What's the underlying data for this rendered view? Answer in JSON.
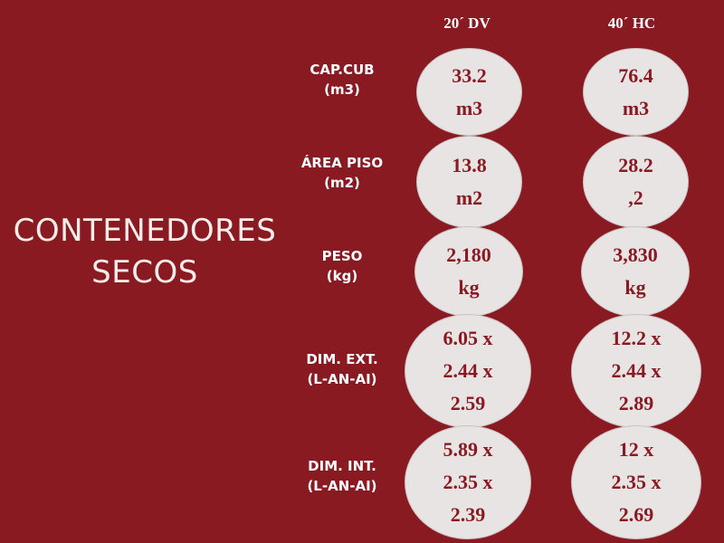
{
  "title": {
    "line1": "CONTENEDORES",
    "line2": "SECOS"
  },
  "columns": [
    "20´ DV",
    "40´ HC"
  ],
  "rows": [
    {
      "label": [
        "CAP.CUB",
        "(m3)"
      ],
      "cells": [
        [
          "33.2",
          "m3"
        ],
        [
          "76.4",
          "m3"
        ]
      ]
    },
    {
      "label": [
        "ÁREA PISO",
        "(m2)"
      ],
      "cells": [
        [
          "13.8",
          "m2"
        ],
        [
          "28.2",
          ",2"
        ]
      ]
    },
    {
      "label": [
        "PESO",
        "(kg)"
      ],
      "cells": [
        [
          "2,180",
          "kg"
        ],
        [
          "3,830",
          "kg"
        ]
      ]
    },
    {
      "label": [
        "DIM. EXT.",
        "(L-AN-AI)"
      ],
      "cells": [
        [
          "6.05 x",
          "2.44 x",
          "2.59"
        ],
        [
          "12.2 x",
          "2.44 x",
          "2.89"
        ]
      ]
    },
    {
      "label": [
        "DIM. INT.",
        "(L-AN-AI)"
      ],
      "cells": [
        [
          "5.89 x",
          "2.35 x",
          "2.39"
        ],
        [
          "12 x",
          "2.35 x",
          "2.69"
        ]
      ]
    }
  ],
  "colors": {
    "background": "#8a1a22",
    "bubble": "#e8e4e4",
    "bubble_text": "#8a1a22",
    "label_text": "#ffffff"
  }
}
